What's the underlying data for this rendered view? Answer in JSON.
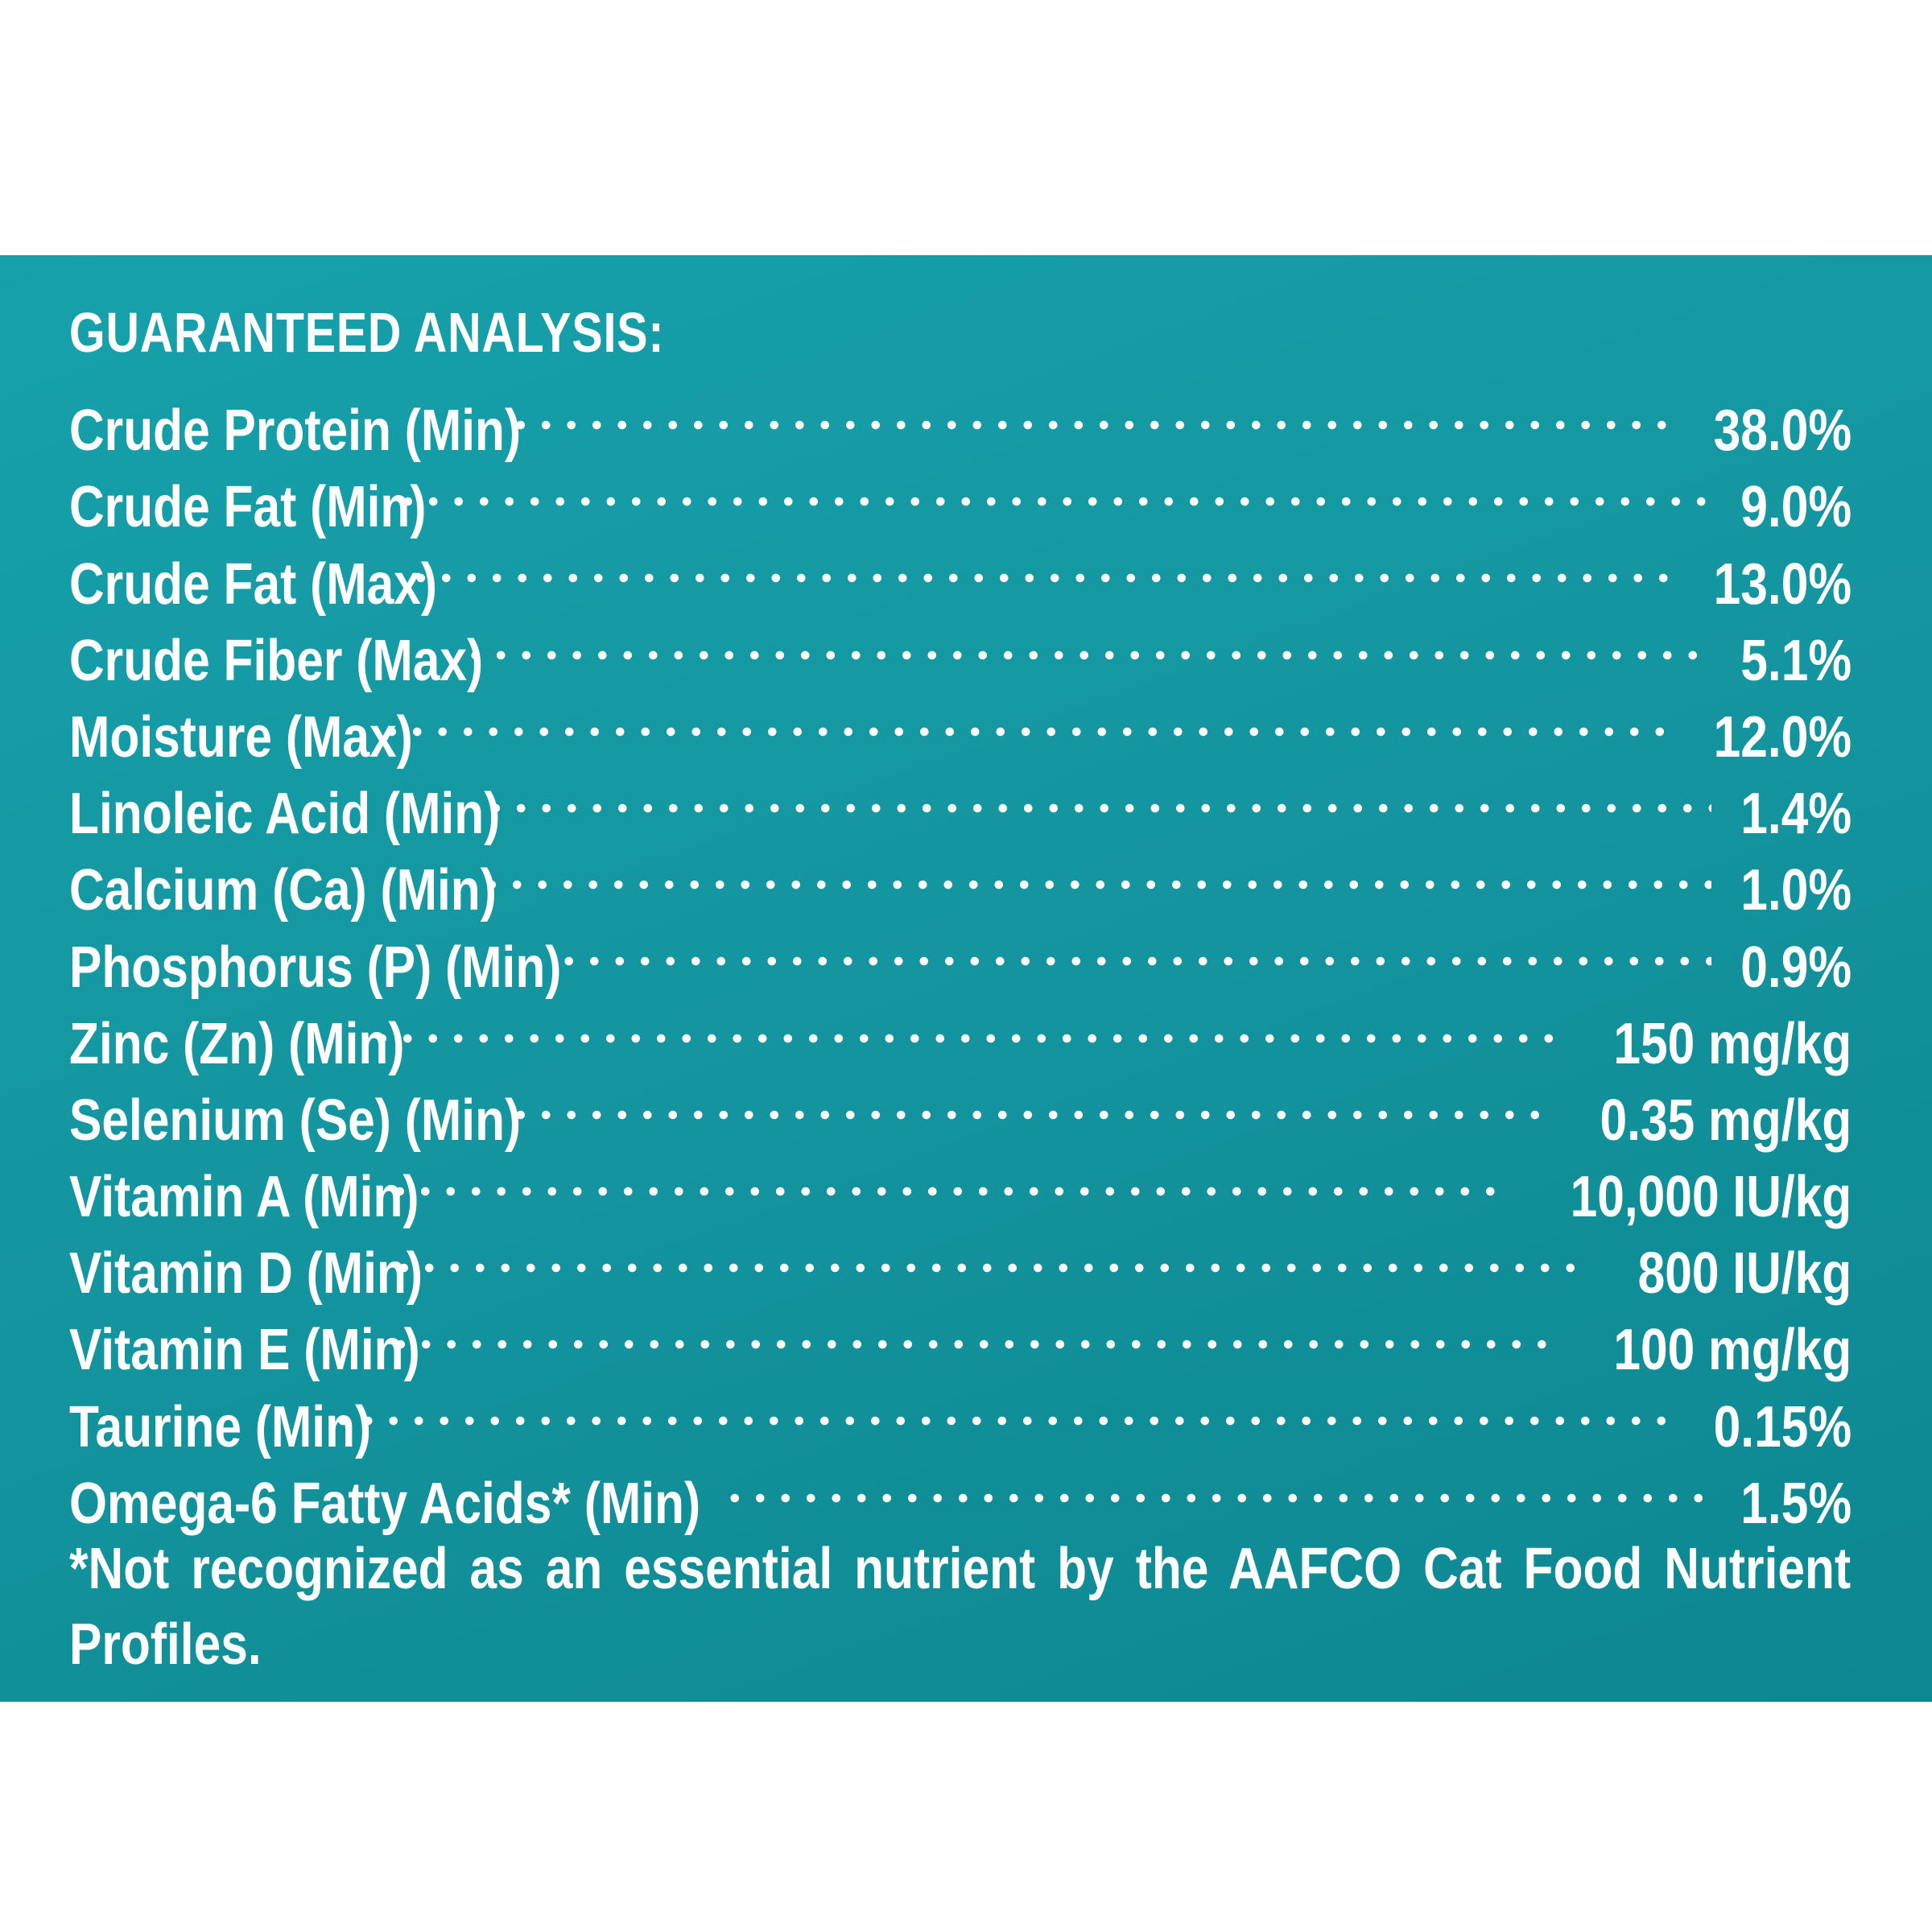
{
  "title": "GUARANTEED ANALYSIS:",
  "rows": [
    {
      "label": "Crude Protein (Min)",
      "value": "38.0%"
    },
    {
      "label": "Crude Fat (Min)",
      "value": "9.0%"
    },
    {
      "label": "Crude Fat (Max)",
      "value": "13.0%"
    },
    {
      "label": "Crude Fiber (Max)",
      "value": "5.1%"
    },
    {
      "label": "Moisture (Max)",
      "value": "12.0%"
    },
    {
      "label": "Linoleic Acid (Min)",
      "value": "1.4%"
    },
    {
      "label": "Calcium (Ca) (Min)",
      "value": "1.0%"
    },
    {
      "label": "Phosphorus (P) (Min)",
      "value": "0.9%"
    },
    {
      "label": "Zinc (Zn) (Min)",
      "value": "150 mg/kg"
    },
    {
      "label": "Selenium (Se) (Min)",
      "value": "0.35 mg/kg"
    },
    {
      "label": "Vitamin A (Min)",
      "value": "10,000 IU/kg"
    },
    {
      "label": "Vitamin D (Min)",
      "value": "800 IU/kg"
    },
    {
      "label": "Vitamin E (Min)",
      "value": "100 mg/kg"
    },
    {
      "label": "Taurine (Min)",
      "value": "0.15%"
    },
    {
      "label": "Omega-6 Fatty Acids* (Min)",
      "value": "1.5%"
    }
  ],
  "footnote": "*Not recognized as an essential nutrient by the AAFCO Cat Food Nutrient Profiles.",
  "colors": {
    "panel": "#1496a0",
    "text": "#ffffff",
    "background": "#ffffff"
  }
}
